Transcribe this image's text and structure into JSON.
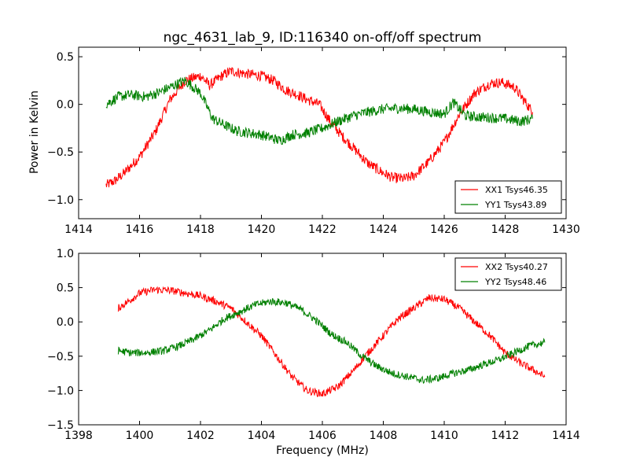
{
  "figure": {
    "title": "ngc_4631_lab_9, ID:116340 on-off/off spectrum",
    "ylabel": "Power in Kelvin",
    "xlabel": "Frequency (MHz)"
  },
  "chart_data": [
    {
      "type": "line",
      "xlim": [
        1414,
        1430
      ],
      "ylim": [
        -1.2,
        0.6
      ],
      "xticks": [
        1414,
        1416,
        1418,
        1420,
        1422,
        1424,
        1426,
        1428,
        1430
      ],
      "xtick_labels": [
        "1414",
        "1416",
        "1418",
        "1420",
        "1422",
        "1424",
        "1426",
        "1428",
        "1430"
      ],
      "yticks": [
        -1.0,
        -0.5,
        0.0,
        0.5
      ],
      "ytick_labels": [
        "−1.0",
        "−0.5",
        "0.0",
        "0.5"
      ],
      "legend_position": "lower-right",
      "grid": false,
      "series": [
        {
          "name": "XX1 Tsys46.35",
          "color": "#ff0000",
          "x": [
            1414.9,
            1415.2,
            1415.5,
            1416.0,
            1416.5,
            1417.0,
            1417.5,
            1418.0,
            1418.3,
            1418.7,
            1419.0,
            1419.5,
            1420.0,
            1420.4,
            1420.8,
            1421.2,
            1421.5,
            1421.9,
            1422.3,
            1422.7,
            1423.0,
            1423.5,
            1424.0,
            1424.3,
            1424.7,
            1425.0,
            1425.5,
            1426.0,
            1426.5,
            1427.0,
            1427.5,
            1427.9,
            1428.3,
            1428.6,
            1428.9
          ],
          "y": [
            -0.85,
            -0.8,
            -0.72,
            -0.55,
            -0.3,
            0.05,
            0.25,
            0.3,
            0.2,
            0.3,
            0.35,
            0.32,
            0.3,
            0.25,
            0.15,
            0.1,
            0.05,
            0.0,
            -0.2,
            -0.35,
            -0.45,
            -0.62,
            -0.72,
            -0.77,
            -0.78,
            -0.75,
            -0.6,
            -0.4,
            -0.1,
            0.12,
            0.22,
            0.23,
            0.18,
            0.05,
            -0.08
          ]
        },
        {
          "name": "YY1 Tsys43.89",
          "color": "#008000",
          "x": [
            1414.9,
            1415.3,
            1415.7,
            1416.2,
            1416.6,
            1417.0,
            1417.5,
            1418.0,
            1418.4,
            1418.8,
            1419.2,
            1419.6,
            1420.0,
            1420.3,
            1420.6,
            1421.0,
            1421.5,
            1422.0,
            1422.5,
            1423.0,
            1423.5,
            1424.0,
            1424.5,
            1425.0,
            1425.5,
            1426.0,
            1426.3,
            1426.7,
            1427.0,
            1427.5,
            1428.0,
            1428.5,
            1428.9
          ],
          "y": [
            0.0,
            0.08,
            0.1,
            0.08,
            0.12,
            0.18,
            0.25,
            0.12,
            -0.15,
            -0.22,
            -0.28,
            -0.3,
            -0.32,
            -0.35,
            -0.38,
            -0.32,
            -0.3,
            -0.25,
            -0.18,
            -0.12,
            -0.08,
            -0.05,
            -0.04,
            -0.05,
            -0.08,
            -0.1,
            0.02,
            -0.12,
            -0.13,
            -0.14,
            -0.15,
            -0.18,
            -0.15
          ]
        }
      ]
    },
    {
      "type": "line",
      "xlim": [
        1398,
        1414
      ],
      "ylim": [
        -1.5,
        1.0
      ],
      "xticks": [
        1398,
        1400,
        1402,
        1404,
        1406,
        1408,
        1410,
        1412,
        1414
      ],
      "xtick_labels": [
        "1398",
        "1400",
        "1402",
        "1404",
        "1406",
        "1408",
        "1410",
        "1412",
        "1414"
      ],
      "yticks": [
        -1.5,
        -1.0,
        -0.5,
        0.0,
        0.5,
        1.0
      ],
      "ytick_labels": [
        "−1.5",
        "−1.0",
        "−0.5",
        "0.0",
        "0.5",
        "1.0"
      ],
      "legend_position": "upper-right",
      "grid": false,
      "series": [
        {
          "name": "XX2 Tsys40.27",
          "color": "#ff0000",
          "x": [
            1399.3,
            1399.7,
            1400.0,
            1400.5,
            1401.0,
            1401.5,
            1402.0,
            1402.5,
            1403.0,
            1403.5,
            1404.0,
            1404.5,
            1405.0,
            1405.5,
            1406.0,
            1406.5,
            1407.0,
            1407.5,
            1408.0,
            1408.5,
            1409.0,
            1409.5,
            1410.0,
            1410.5,
            1411.0,
            1411.5,
            1412.0,
            1412.5,
            1413.0,
            1413.3
          ],
          "y": [
            0.2,
            0.32,
            0.42,
            0.47,
            0.46,
            0.42,
            0.38,
            0.3,
            0.2,
            0.0,
            -0.2,
            -0.5,
            -0.8,
            -1.0,
            -1.05,
            -0.95,
            -0.72,
            -0.45,
            -0.2,
            0.05,
            0.2,
            0.35,
            0.33,
            0.2,
            0.0,
            -0.2,
            -0.45,
            -0.6,
            -0.72,
            -0.8
          ]
        },
        {
          "name": "YY2 Tsys48.46",
          "color": "#008000",
          "x": [
            1399.3,
            1399.7,
            1400.2,
            1400.8,
            1401.3,
            1401.8,
            1402.3,
            1402.8,
            1403.3,
            1403.8,
            1404.3,
            1404.8,
            1405.3,
            1405.8,
            1406.3,
            1406.8,
            1407.3,
            1407.8,
            1408.3,
            1408.8,
            1409.3,
            1409.8,
            1410.3,
            1410.8,
            1411.3,
            1411.8,
            1412.3,
            1412.8,
            1413.3
          ],
          "y": [
            -0.42,
            -0.45,
            -0.45,
            -0.42,
            -0.35,
            -0.25,
            -0.12,
            0.05,
            0.15,
            0.25,
            0.3,
            0.28,
            0.18,
            0.02,
            -0.18,
            -0.3,
            -0.5,
            -0.65,
            -0.75,
            -0.8,
            -0.85,
            -0.82,
            -0.75,
            -0.7,
            -0.62,
            -0.55,
            -0.45,
            -0.35,
            -0.3
          ]
        }
      ]
    }
  ]
}
